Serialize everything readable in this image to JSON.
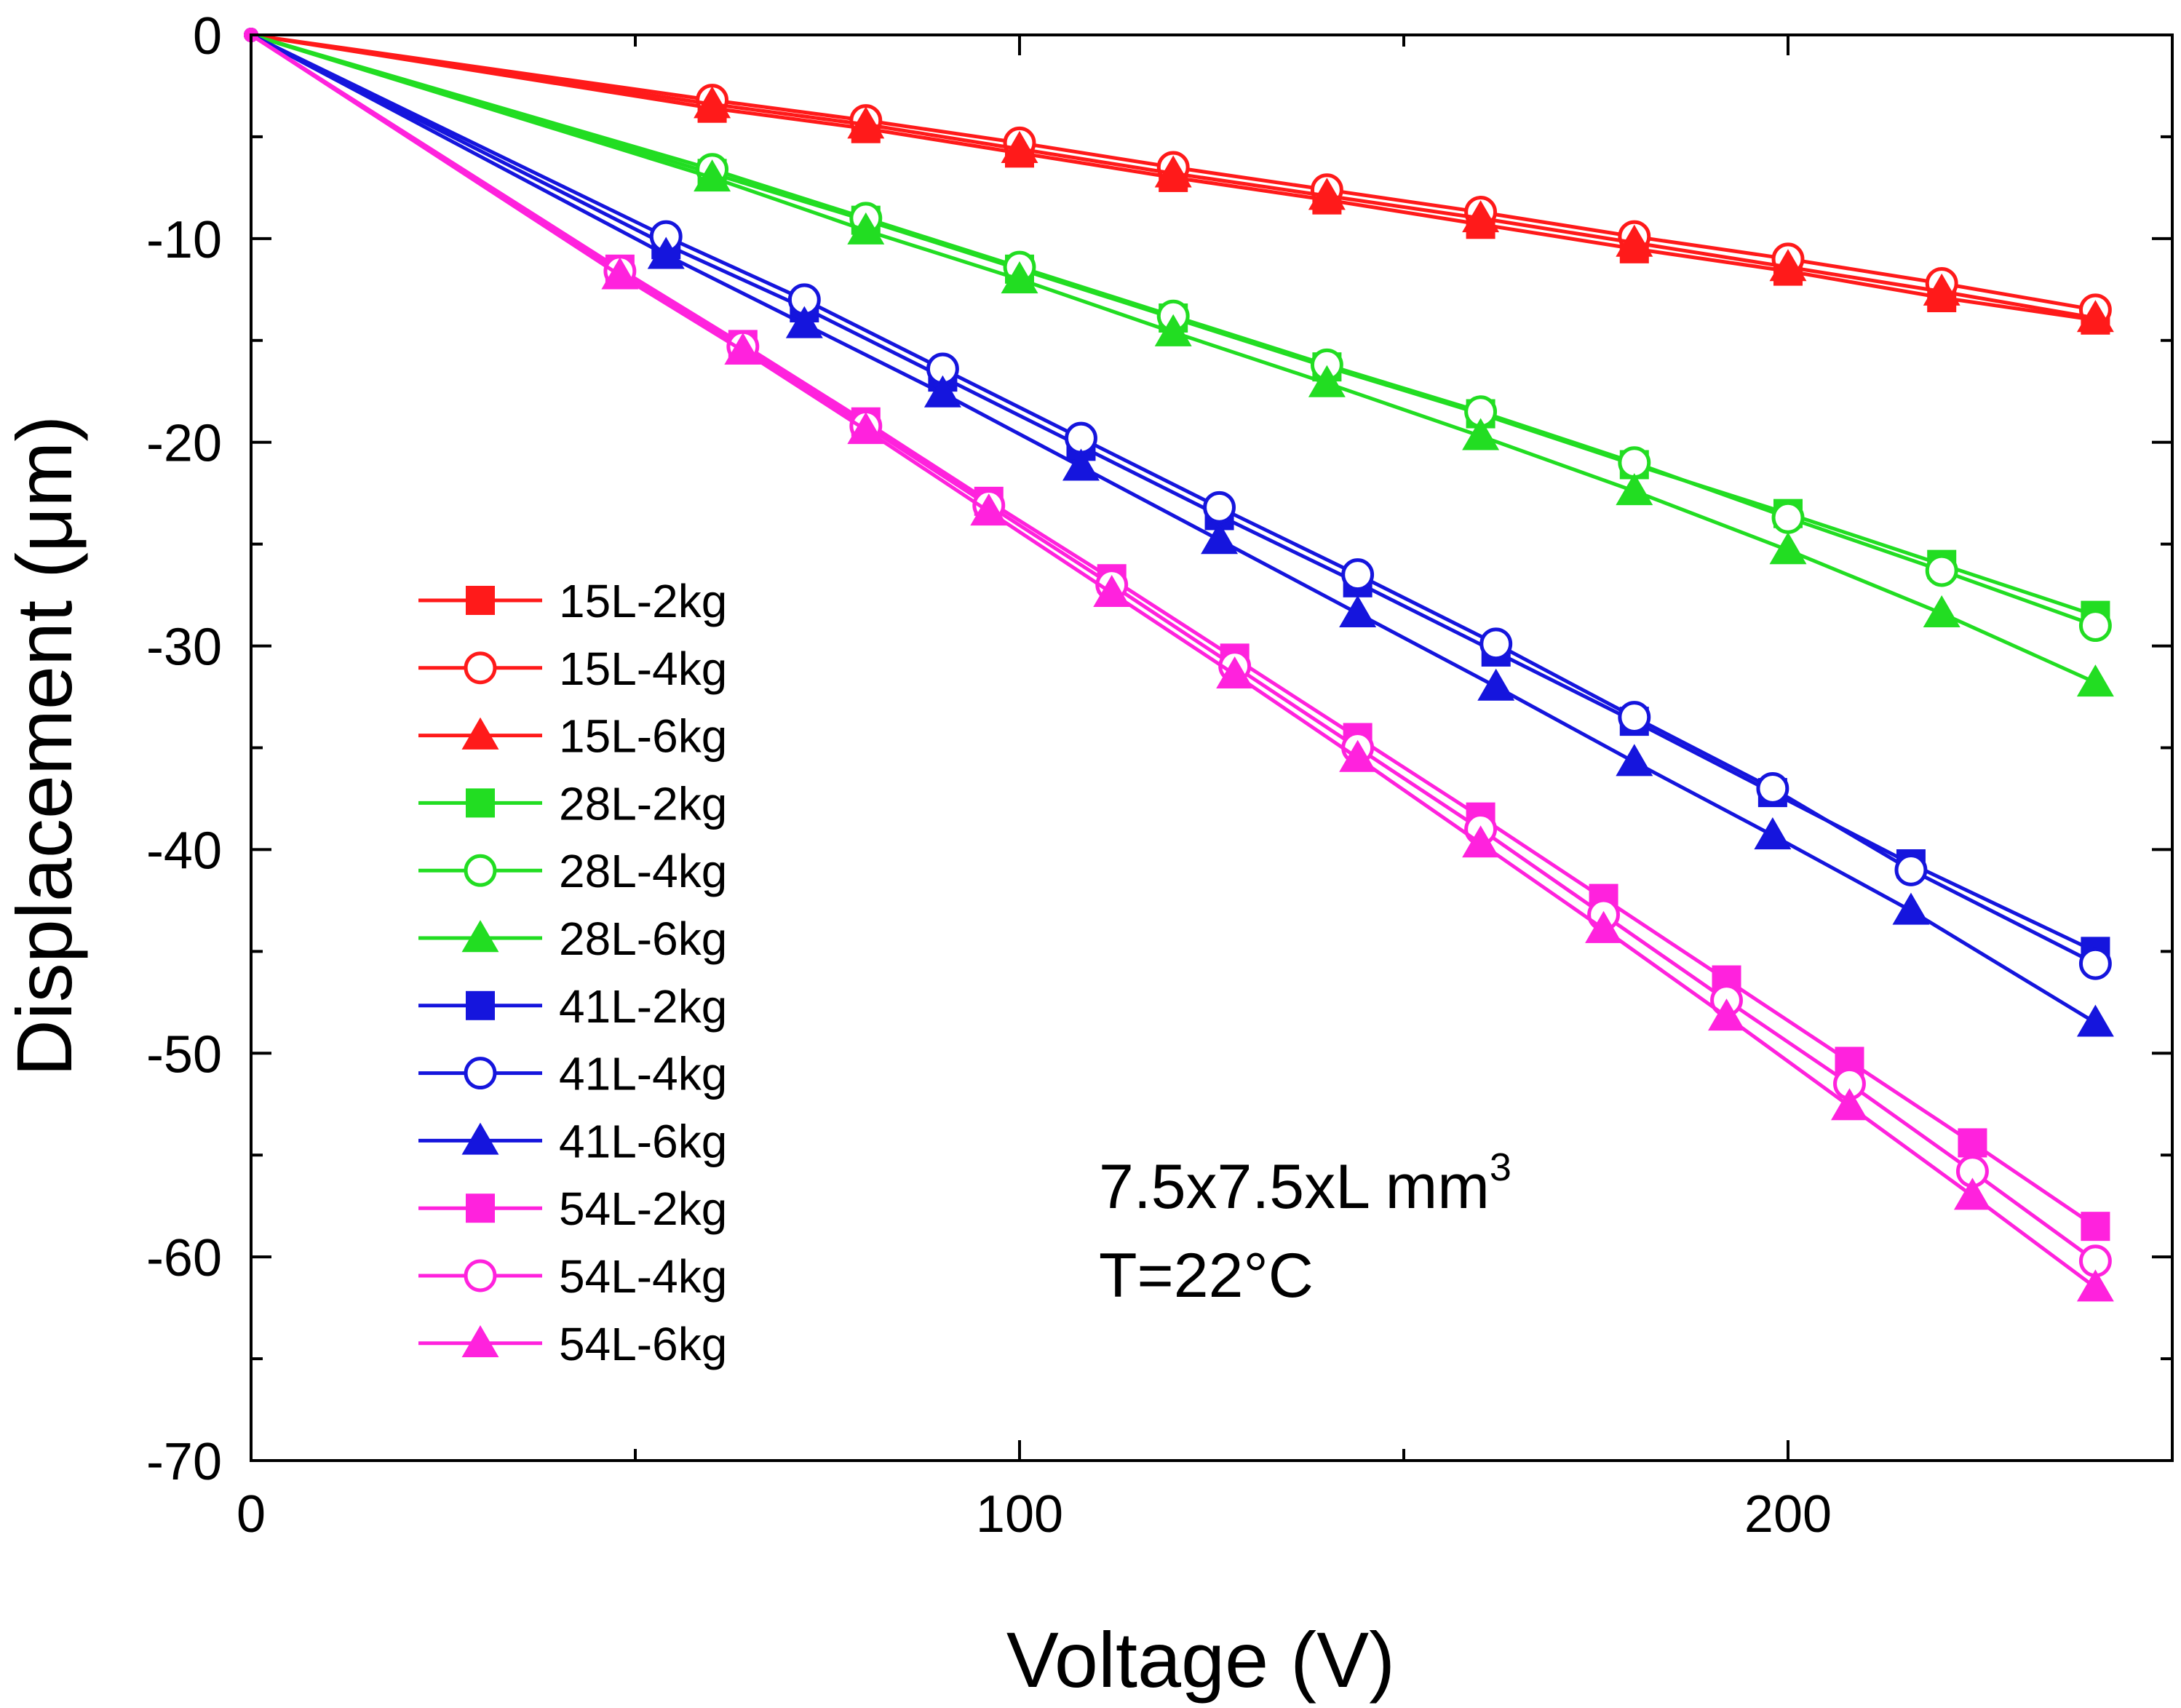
{
  "chart_data": {
    "type": "line",
    "title": "",
    "xlabel": "Voltage (V)",
    "ylabel": "Displacement (μm)",
    "xlim": [
      0,
      250
    ],
    "ylim": [
      -70,
      0
    ],
    "x_ticks": [
      0,
      100,
      200
    ],
    "x_tick_labels": [
      "0",
      "100",
      "200"
    ],
    "x_minor_ticks": [
      50,
      150
    ],
    "y_ticks": [
      0,
      -10,
      -20,
      -30,
      -40,
      -50,
      -60,
      -70
    ],
    "y_tick_labels": [
      "0",
      "-10",
      "-20",
      "-30",
      "-40",
      "-50",
      "-60",
      "-70"
    ],
    "y_minor_ticks": [
      -5,
      -15,
      -25,
      -35,
      -45,
      -55,
      -65
    ],
    "grid": false,
    "legend_position": "left",
    "annotation": {
      "line1": "7.5x7.5xL mm",
      "line1_sup": "3",
      "line2": "T=22°C"
    },
    "colors": {
      "15L": "#ff1a1a",
      "28L": "#22dd22",
      "41L": "#1515dd",
      "54L": "#ff22dd"
    },
    "series": [
      {
        "name": "15L-2kg",
        "color": "#ff1a1a",
        "marker": "square",
        "x": [
          0,
          60,
          80,
          100,
          120,
          140,
          160,
          180,
          200,
          220,
          240
        ],
        "y": [
          0,
          -3.6,
          -4.6,
          -5.8,
          -7.0,
          -8.1,
          -9.3,
          -10.5,
          -11.6,
          -12.9,
          -14.0
        ]
      },
      {
        "name": "15L-4kg",
        "color": "#ff1a1a",
        "marker": "circle-open",
        "x": [
          0,
          60,
          80,
          100,
          120,
          140,
          160,
          180,
          200,
          220,
          240
        ],
        "y": [
          0,
          -3.2,
          -4.2,
          -5.3,
          -6.5,
          -7.6,
          -8.7,
          -9.9,
          -11.0,
          -12.2,
          -13.5
        ]
      },
      {
        "name": "15L-6kg",
        "color": "#ff1a1a",
        "marker": "triangle",
        "x": [
          0,
          60,
          80,
          100,
          120,
          140,
          160,
          180,
          200,
          220,
          240
        ],
        "y": [
          0,
          -3.4,
          -4.4,
          -5.6,
          -6.8,
          -7.9,
          -9.0,
          -10.2,
          -11.4,
          -12.6,
          -13.9
        ]
      },
      {
        "name": "28L-2kg",
        "color": "#22dd22",
        "marker": "square",
        "x": [
          0,
          60,
          80,
          100,
          120,
          140,
          160,
          180,
          200,
          220,
          240
        ],
        "y": [
          0,
          -6.8,
          -9.1,
          -11.5,
          -13.9,
          -16.3,
          -18.6,
          -21.1,
          -23.5,
          -26.0,
          -28.5
        ]
      },
      {
        "name": "28L-4kg",
        "color": "#22dd22",
        "marker": "circle-open",
        "x": [
          0,
          60,
          80,
          100,
          120,
          140,
          160,
          180,
          200,
          220,
          240
        ],
        "y": [
          0,
          -6.6,
          -9.0,
          -11.4,
          -13.8,
          -16.2,
          -18.5,
          -21.0,
          -23.7,
          -26.3,
          -29.0
        ]
      },
      {
        "name": "28L-6kg",
        "color": "#22dd22",
        "marker": "triangle",
        "x": [
          0,
          60,
          80,
          100,
          120,
          140,
          160,
          180,
          200,
          220,
          240
        ],
        "y": [
          0,
          -7.0,
          -9.6,
          -12.0,
          -14.6,
          -17.1,
          -19.7,
          -22.4,
          -25.3,
          -28.4,
          -31.8
        ]
      },
      {
        "name": "41L-2kg",
        "color": "#1515dd",
        "marker": "square",
        "x": [
          0,
          54,
          72,
          90,
          108,
          126,
          144,
          162,
          180,
          198,
          216,
          240
        ],
        "y": [
          0,
          -10.3,
          -13.4,
          -16.8,
          -20.2,
          -23.6,
          -26.9,
          -30.3,
          -33.7,
          -37.2,
          -40.7,
          -45.0
        ]
      },
      {
        "name": "41L-4kg",
        "color": "#1515dd",
        "marker": "circle-open",
        "x": [
          0,
          54,
          72,
          90,
          108,
          126,
          144,
          162,
          180,
          198,
          216,
          240
        ],
        "y": [
          0,
          -9.9,
          -13.0,
          -16.4,
          -19.8,
          -23.2,
          -26.5,
          -29.9,
          -33.5,
          -37.0,
          -41.0,
          -45.6
        ]
      },
      {
        "name": "41L-6kg",
        "color": "#1515dd",
        "marker": "triangle",
        "x": [
          0,
          54,
          72,
          90,
          108,
          126,
          144,
          162,
          180,
          198,
          216,
          240
        ],
        "y": [
          0,
          -10.8,
          -14.2,
          -17.6,
          -21.2,
          -24.8,
          -28.4,
          -32.0,
          -35.7,
          -39.3,
          -43.0,
          -48.5
        ]
      },
      {
        "name": "54L-2kg",
        "color": "#ff22dd",
        "marker": "square",
        "x": [
          0,
          48,
          64,
          80,
          96,
          112,
          128,
          144,
          160,
          176,
          192,
          208,
          224,
          240
        ],
        "y": [
          0,
          -11.5,
          -15.2,
          -19.0,
          -22.9,
          -26.7,
          -30.6,
          -34.5,
          -38.4,
          -42.4,
          -46.4,
          -50.4,
          -54.4,
          -58.5
        ]
      },
      {
        "name": "54L-4kg",
        "color": "#ff22dd",
        "marker": "circle-open",
        "x": [
          0,
          48,
          64,
          80,
          96,
          112,
          128,
          144,
          160,
          176,
          192,
          208,
          224,
          240
        ],
        "y": [
          0,
          -11.6,
          -15.3,
          -19.2,
          -23.1,
          -27.0,
          -31.0,
          -35.0,
          -39.0,
          -43.2,
          -47.4,
          -51.5,
          -55.8,
          -60.2
        ]
      },
      {
        "name": "54L-6kg",
        "color": "#ff22dd",
        "marker": "triangle",
        "x": [
          0,
          48,
          64,
          80,
          96,
          112,
          128,
          144,
          160,
          176,
          192,
          208,
          224,
          240
        ],
        "y": [
          0,
          -11.8,
          -15.5,
          -19.4,
          -23.4,
          -27.4,
          -31.4,
          -35.5,
          -39.7,
          -43.9,
          -48.2,
          -52.6,
          -57.0,
          -61.5
        ]
      }
    ]
  }
}
